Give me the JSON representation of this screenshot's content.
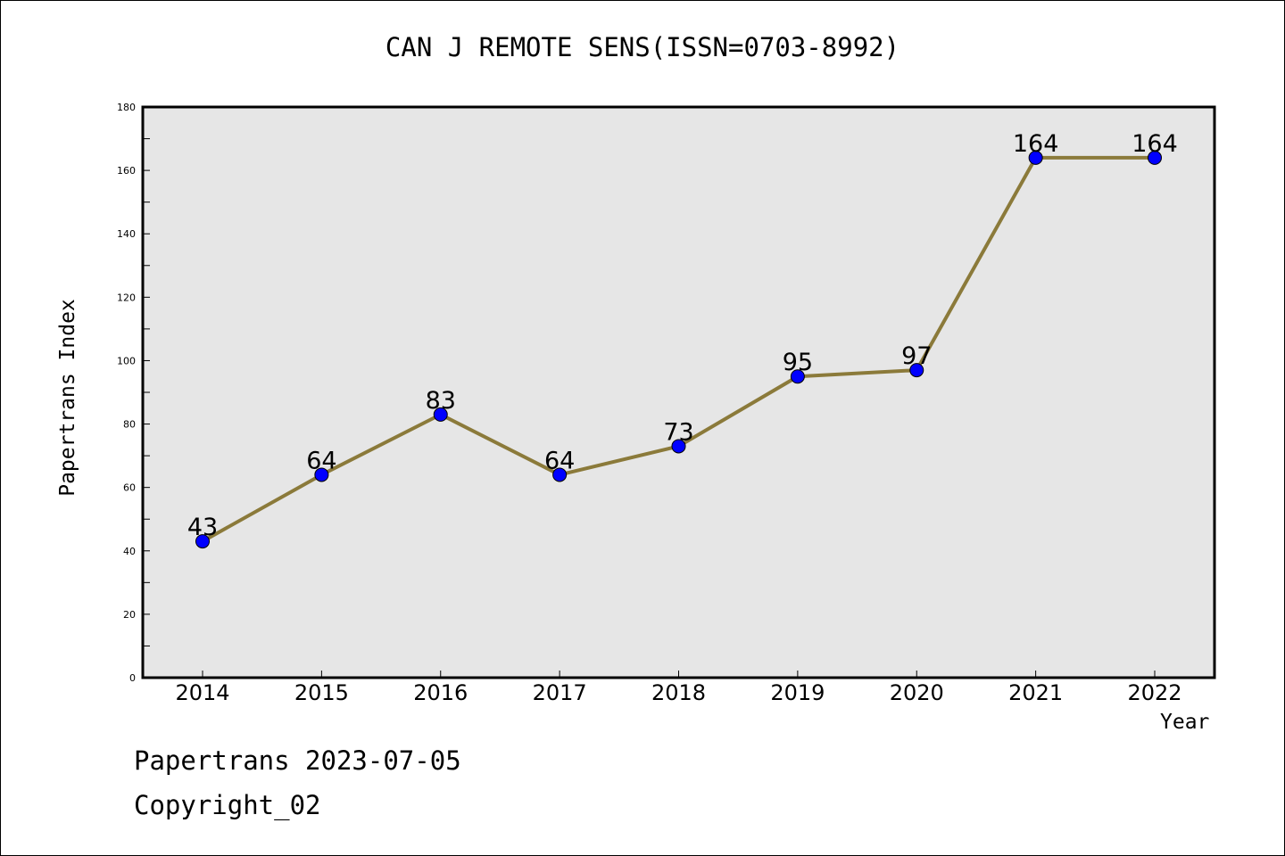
{
  "chart_data": {
    "type": "line",
    "title": "CAN J REMOTE SENS(ISSN=0703-8992)",
    "xlabel": "Year",
    "ylabel": "Papertrans Index",
    "categories": [
      "2014",
      "2015",
      "2016",
      "2017",
      "2018",
      "2019",
      "2020",
      "2021",
      "2022"
    ],
    "values": [
      43,
      64,
      83,
      64,
      73,
      95,
      97,
      164,
      164
    ],
    "ylim": [
      0,
      180
    ],
    "yticks": [
      0,
      20,
      40,
      60,
      80,
      100,
      120,
      140,
      160,
      180
    ],
    "grid": false,
    "legend": "none",
    "colors": {
      "line": "#8b7a3a",
      "marker": "#0000ff",
      "plot_background": "#e6e6e6"
    }
  },
  "footer": {
    "line1": "Papertrans 2023-07-05",
    "line2": "Copyright_02"
  }
}
